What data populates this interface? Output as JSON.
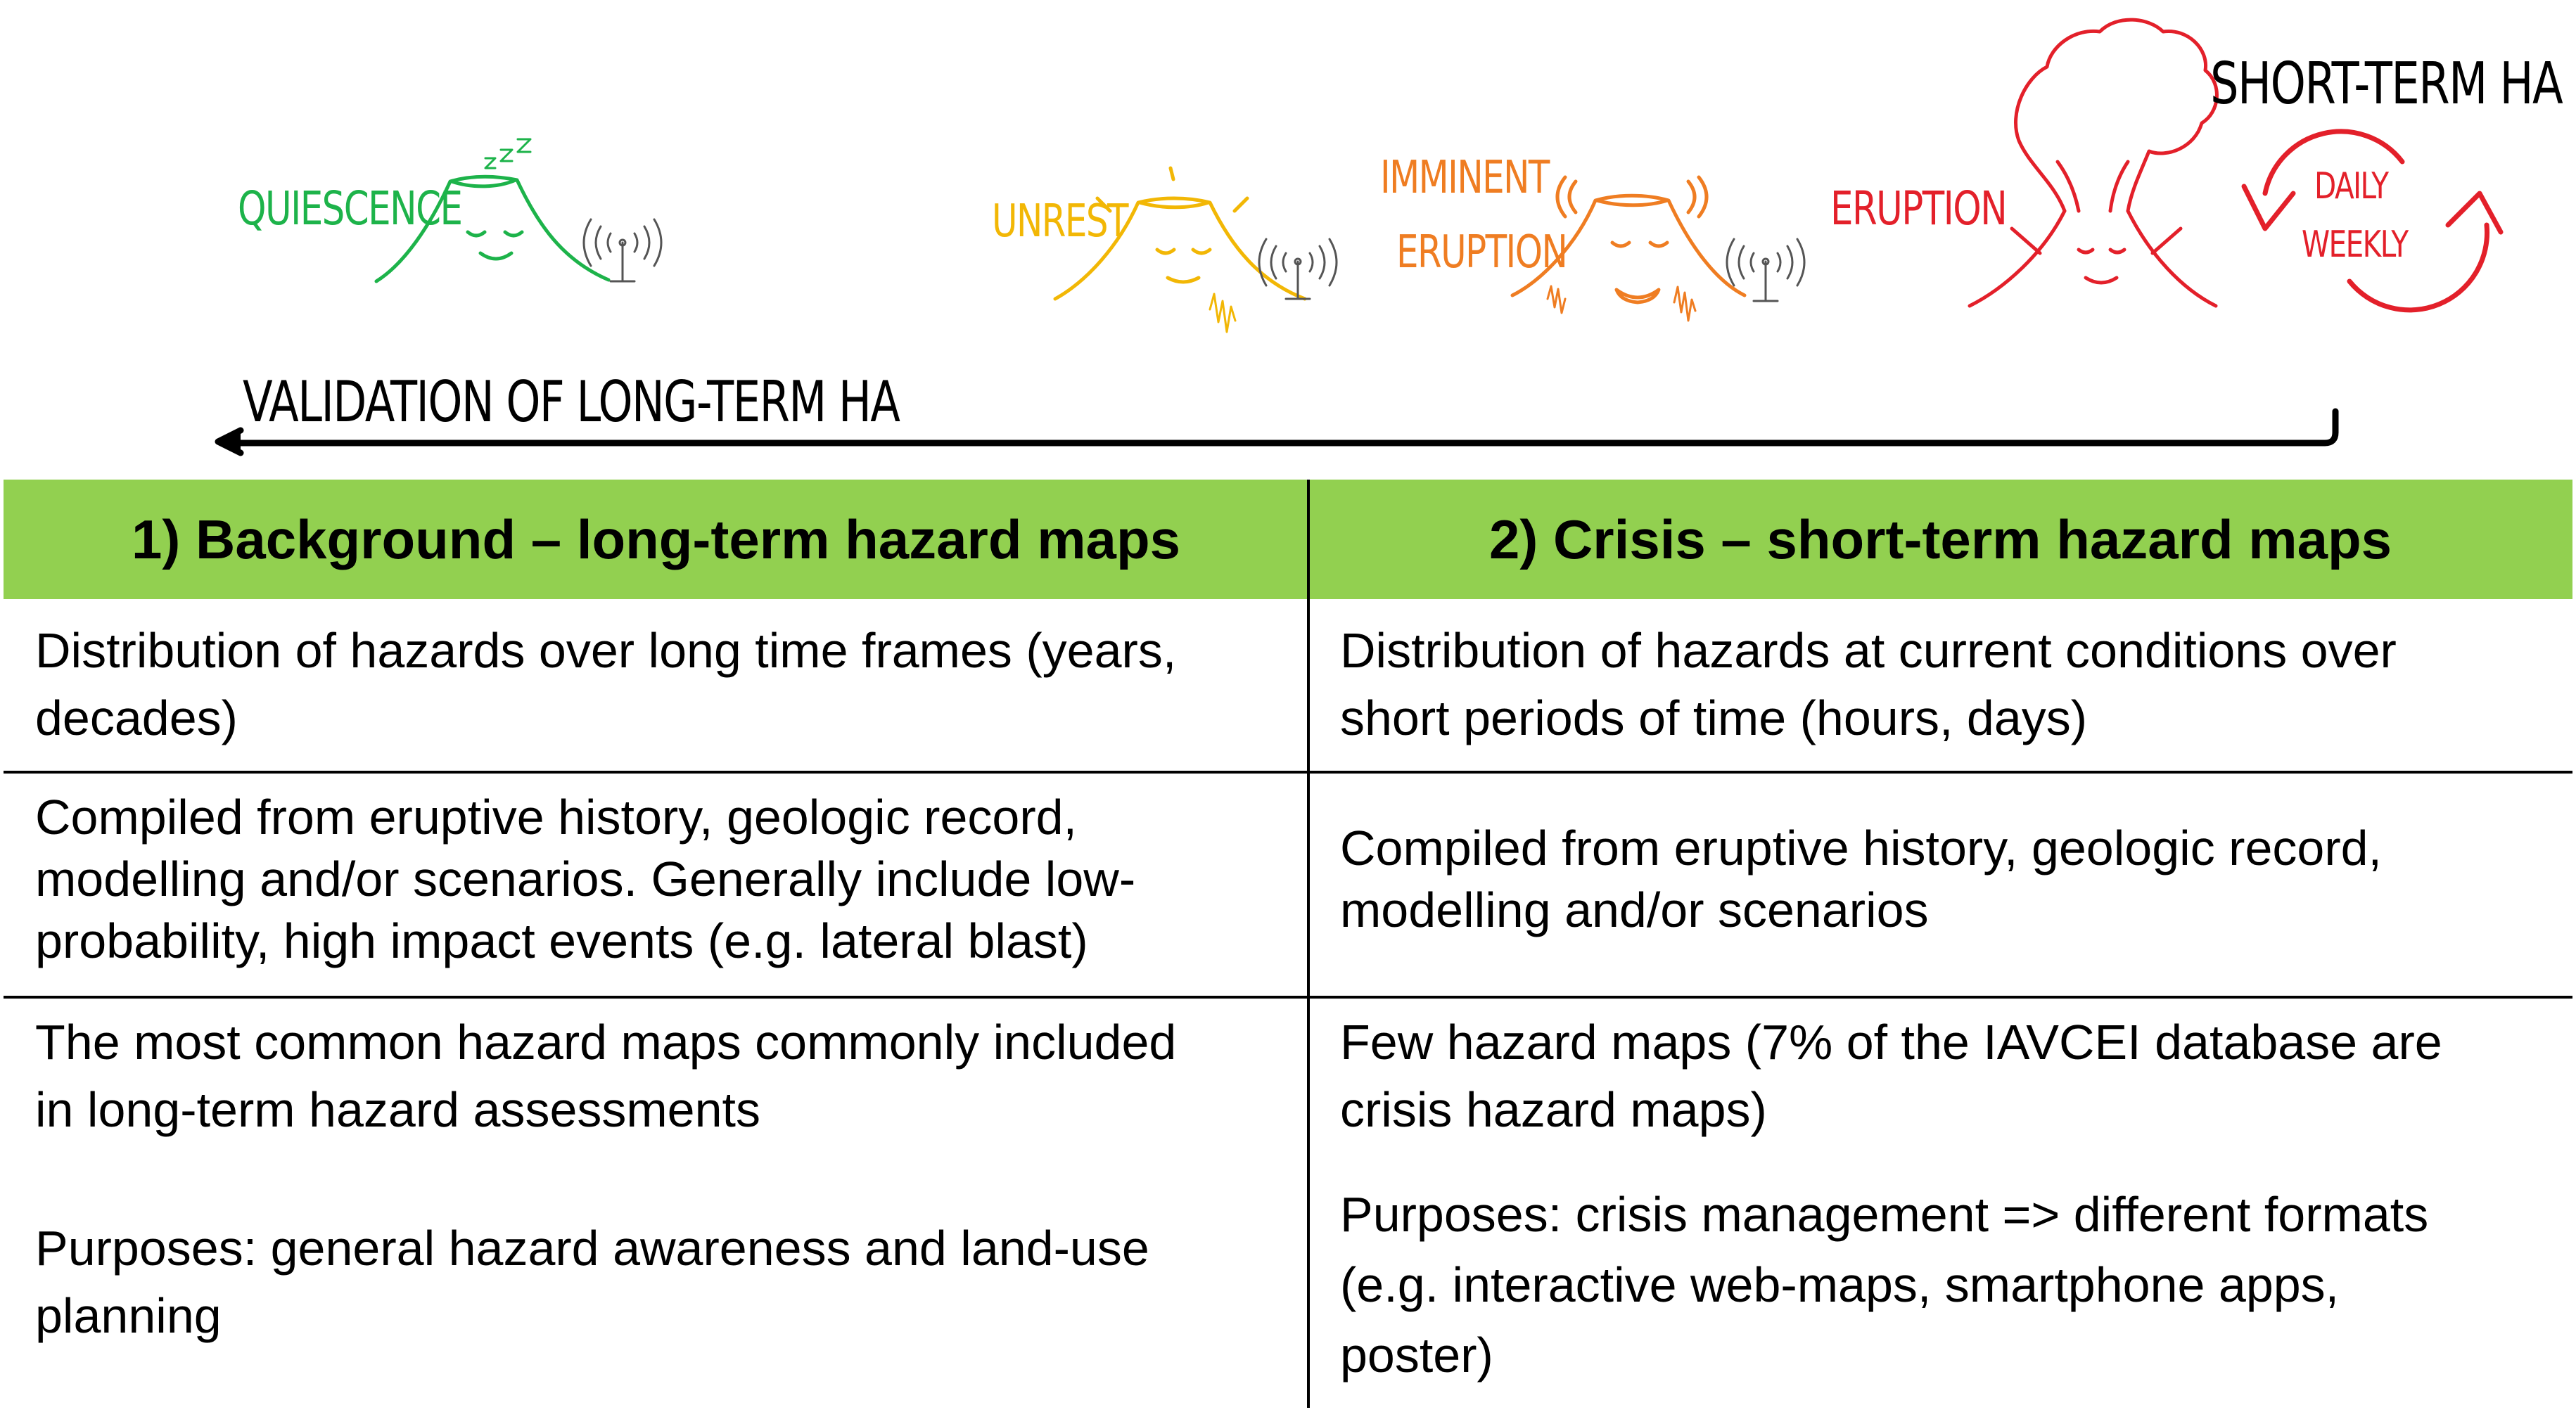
{
  "diagram": {
    "stages": [
      {
        "label": "QUIESCENCE",
        "color": "#1db34a"
      },
      {
        "label": "UNREST",
        "color": "#f2b705"
      },
      {
        "label": "IMMINENT",
        "label2": "ERUPTION",
        "color": "#ef7d22"
      },
      {
        "label": "ERUPTION",
        "color": "#e3202a"
      }
    ],
    "sleep_mark": "z z z",
    "short_term": {
      "title": "SHORT-TERM HA",
      "daily": "DAILY",
      "weekly": "WEEKLY",
      "color": "#e3202a"
    },
    "validation_label": "VALIDATION OF LONG-TERM HA"
  },
  "table": {
    "header_bg": "#92d050",
    "columns": [
      "1) Background – long-term hazard maps",
      "2) Crisis – short-term hazard maps"
    ],
    "rows": [
      {
        "left": [
          "Distribution of hazards over long time frames (years,",
          "decades)"
        ],
        "right": [
          "Distribution of hazards at current conditions over",
          "short periods of time (hours, days)"
        ]
      },
      {
        "left": [
          "Compiled from eruptive history, geologic record,",
          "modelling and/or scenarios. Generally include low-",
          "probability, high impact events (e.g. lateral blast)"
        ],
        "right": [
          "Compiled from eruptive history, geologic record,",
          "modelling and/or scenarios"
        ]
      },
      {
        "left": [
          "The most common hazard maps commonly included",
          "in long-term hazard assessments"
        ],
        "right": [
          "Few hazard maps (7% of the IAVCEI database are",
          "crisis hazard maps)"
        ]
      },
      {
        "left": [
          "Purposes: general hazard awareness and land-use",
          "planning"
        ],
        "right": [
          "Purposes: crisis management => different formats",
          "(e.g. interactive web-maps, smartphone apps,",
          "poster)"
        ]
      }
    ]
  }
}
